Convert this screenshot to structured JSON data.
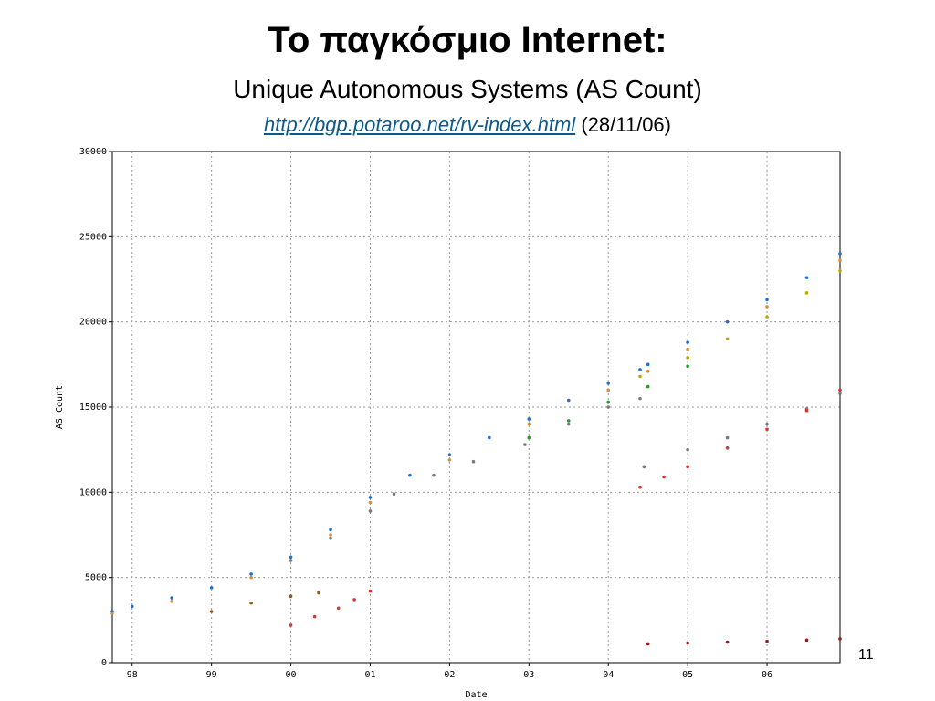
{
  "slide": {
    "title": "Το παγκόσμιο Internet:",
    "subtitle": "Unique Autonomous Systems (AS Count)",
    "source_url": "http://bgp.potaroo.net/rv-index.html",
    "source_date": "(28/11/06)",
    "page_number": "11"
  },
  "colors": {
    "link": "#0b5a8c",
    "grid": "#9a9a9a",
    "series_main": "#1f6fd1",
    "series_orange": "#e08a3c",
    "series_olive": "#b8a800",
    "series_green": "#2a9a2a",
    "series_gray": "#7a7a7a",
    "series_red": "#e03030",
    "series_brown": "#8a5a1a",
    "series_darkred": "#9a1a1a"
  },
  "chart_data": {
    "type": "scatter",
    "title": "",
    "xlabel": "Date",
    "ylabel": "AS Count",
    "xlim": [
      1997.75,
      2006.92
    ],
    "ylim": [
      0,
      30000
    ],
    "x_ticks": [
      1998,
      1999,
      2000,
      2001,
      2002,
      2003,
      2004,
      2005,
      2006
    ],
    "x_tick_labels": [
      "98",
      "99",
      "00",
      "01",
      "02",
      "03",
      "04",
      "05",
      "06"
    ],
    "y_ticks": [
      0,
      5000,
      10000,
      15000,
      20000,
      25000,
      30000
    ],
    "y_tick_labels": [
      "0",
      "5000",
      "10000",
      "15000",
      "20000",
      "25000",
      "30000"
    ],
    "grid": true,
    "series": [
      {
        "color": "#1f6fd1",
        "x": [
          1997.75,
          1998.0,
          1998.5,
          1999.0,
          1999.5,
          2000.0,
          2000.5,
          2001.0,
          2001.5,
          2002.0,
          2002.5,
          2003.0,
          2003.5,
          2004.0,
          2004.4,
          2004.5,
          2005.0,
          2005.5,
          2006.0,
          2006.5,
          2006.92
        ],
        "y": [
          3000,
          3300,
          3800,
          4400,
          5200,
          6200,
          7800,
          9700,
          11000,
          12200,
          13200,
          14300,
          15400,
          16400,
          17200,
          17500,
          18800,
          20000,
          21300,
          22600,
          24000
        ]
      },
      {
        "color": "#e08a3c",
        "x": [
          1997.75,
          1998.5,
          1999.5,
          2000.5,
          2001.0,
          2002.0,
          2003.0,
          2004.0,
          2004.5,
          2005.0,
          2006.0,
          2006.92
        ],
        "y": [
          2900,
          3600,
          5000,
          7500,
          9400,
          11900,
          14000,
          16000,
          17100,
          18400,
          20900,
          23600
        ]
      },
      {
        "color": "#b8a800",
        "x": [
          2004.4,
          2005.0,
          2005.5,
          2006.0,
          2006.5,
          2006.92
        ],
        "y": [
          16800,
          17900,
          19000,
          20300,
          21700,
          23000
        ]
      },
      {
        "color": "#2a9a2a",
        "x": [
          2003.0,
          2003.5,
          2004.0,
          2004.5,
          2005.0
        ],
        "y": [
          13200,
          14200,
          15300,
          16200,
          17400
        ]
      },
      {
        "color": "#7a7a7a",
        "x": [
          2000.0,
          2000.5,
          2001.0,
          2001.3,
          2001.8,
          2002.3,
          2002.95,
          2003.5,
          2004.0,
          2004.4,
          2004.45,
          2005.0,
          2005.5,
          2006.0,
          2006.5,
          2006.92
        ],
        "y": [
          6000,
          7300,
          8900,
          9900,
          11000,
          11800,
          12800,
          14000,
          15000,
          15500,
          11500,
          12500,
          13200,
          14000,
          14900,
          15800
        ]
      },
      {
        "color": "#e03030",
        "x": [
          2000.0,
          2000.3,
          2000.6,
          2000.8,
          2001.0,
          2004.4,
          2004.7,
          2005.0,
          2005.5,
          2006.0,
          2006.5,
          2006.92
        ],
        "y": [
          2200,
          2700,
          3200,
          3700,
          4200,
          10300,
          10900,
          11500,
          12600,
          13700,
          14800,
          16000
        ]
      },
      {
        "color": "#8a5a1a",
        "x": [
          1999.0,
          1999.5,
          2000.0,
          2000.35
        ],
        "y": [
          3000,
          3500,
          3900,
          4100
        ]
      },
      {
        "color": "#9a1a1a",
        "x": [
          2004.5,
          2005.0,
          2005.5,
          2006.0,
          2006.5,
          2006.92
        ],
        "y": [
          1100,
          1150,
          1200,
          1250,
          1320,
          1400
        ]
      }
    ]
  }
}
